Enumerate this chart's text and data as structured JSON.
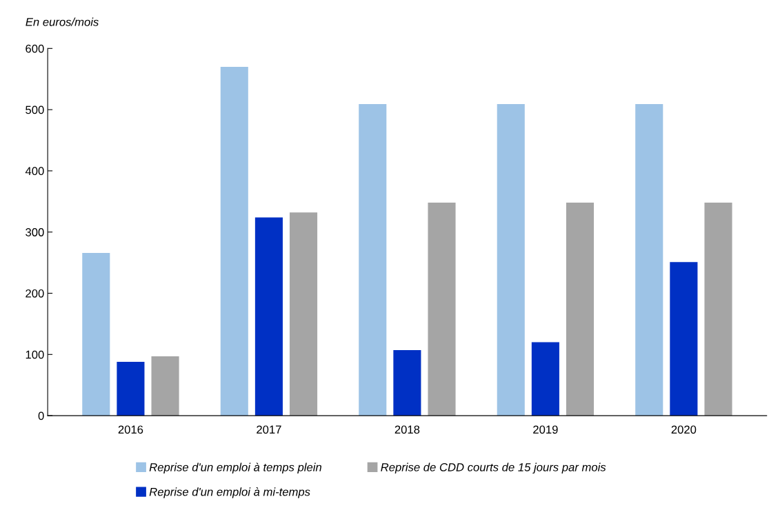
{
  "chart_data": {
    "type": "bar",
    "ylabel": "En euros/mois",
    "categories": [
      "2016",
      "2017",
      "2018",
      "2019",
      "2020"
    ],
    "series": [
      {
        "name": "Reprise d'un emploi à temps plein",
        "color": "#9dc3e6",
        "values": [
          266,
          570,
          509,
          509,
          509
        ]
      },
      {
        "name": "Reprise d'un emploi à mi-temps",
        "color": "#0030c4",
        "values": [
          88,
          324,
          107,
          120,
          251
        ]
      },
      {
        "name": "Reprise de CDD courts de 15 jours par mois",
        "color": "#a5a5a5",
        "values": [
          97,
          332,
          348,
          348,
          348
        ]
      }
    ],
    "ylim": [
      0,
      600
    ],
    "yticks": [
      0,
      100,
      200,
      300,
      400,
      500,
      600
    ],
    "grid": false,
    "legend": "bottom"
  }
}
